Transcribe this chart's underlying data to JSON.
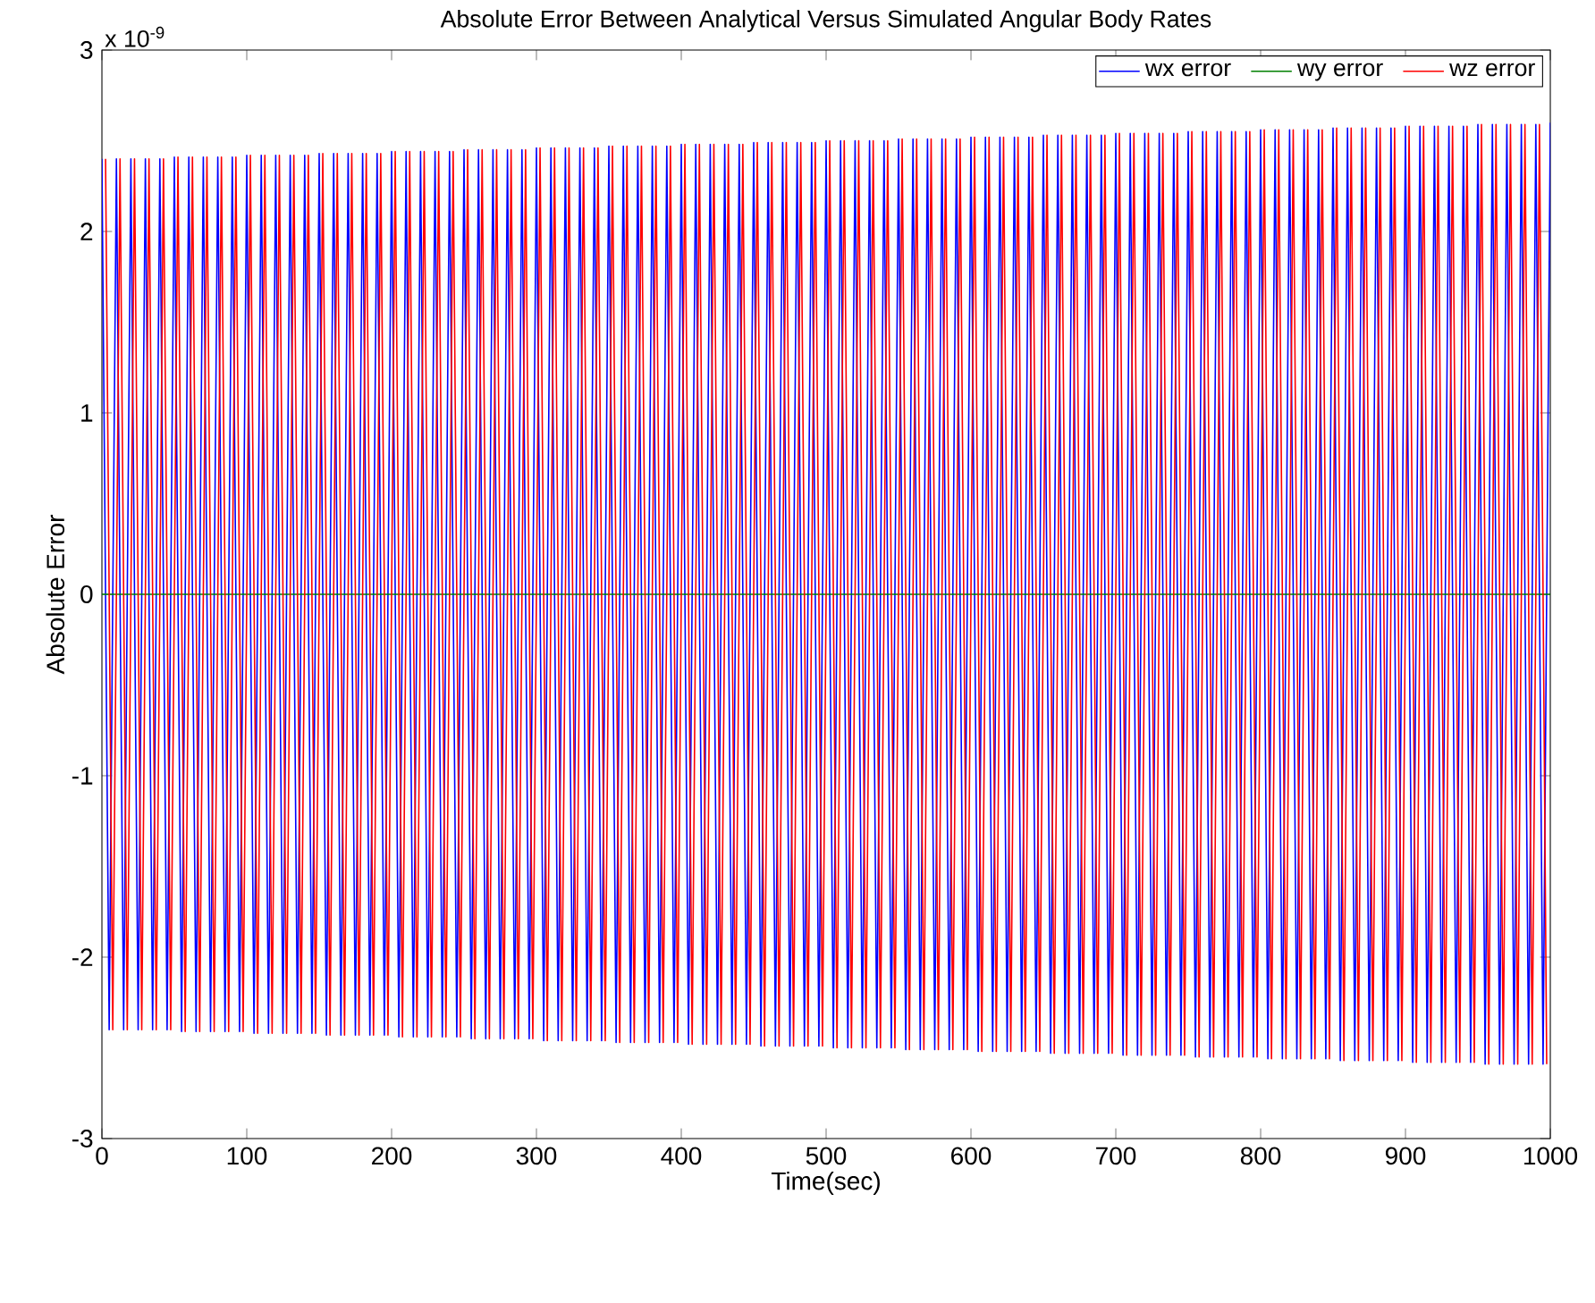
{
  "chart_data": {
    "type": "line",
    "title": "Absolute Error Between Analytical Versus Simulated Angular Body Rates",
    "xlabel": "Time(sec)",
    "ylabel": "Absolute Error",
    "annotations": [
      "x 10$^{-9}$"
    ],
    "xlim": [
      0,
      1000
    ],
    "ylim": [
      -3,
      3
    ],
    "xticks": [
      0,
      100,
      200,
      300,
      400,
      500,
      600,
      700,
      800,
      900,
      1000
    ],
    "yticks": [
      -3,
      -2,
      -1,
      0,
      1,
      2,
      3
    ],
    "grid": false,
    "legend": "top right",
    "line_style": "solid",
    "series": [
      {
        "name": "wx error",
        "color": "#0000ff",
        "x": [
          0,
          5,
          10,
          15,
          20,
          25,
          30,
          35,
          40,
          45,
          50,
          55,
          60,
          65,
          70,
          75,
          80,
          85,
          90,
          95,
          100,
          105,
          110,
          115,
          120,
          125,
          130,
          135,
          140,
          145,
          150,
          155,
          160,
          165,
          170,
          175,
          180,
          185,
          190,
          195,
          200,
          205,
          210,
          215,
          220,
          225,
          230,
          235,
          240,
          245,
          250,
          255,
          260,
          265,
          270,
          275,
          280,
          285,
          290,
          295,
          300,
          305,
          310,
          315,
          320,
          325,
          330,
          335,
          340,
          345,
          350,
          355,
          360,
          365,
          370,
          375,
          380,
          385,
          390,
          395,
          400,
          405,
          410,
          415,
          420,
          425,
          430,
          435,
          440,
          445,
          450,
          455,
          460,
          465,
          470,
          475,
          480,
          485,
          490,
          495,
          500,
          505,
          510,
          515,
          520,
          525,
          530,
          535,
          540,
          545,
          550,
          555,
          560,
          565,
          570,
          575,
          580,
          585,
          590,
          595,
          600,
          605,
          610,
          615,
          620,
          625,
          630,
          635,
          640,
          645,
          650,
          655,
          660,
          665,
          670,
          675,
          680,
          685,
          690,
          695,
          700,
          705,
          710,
          715,
          720,
          725,
          730,
          735,
          740,
          745,
          750,
          755,
          760,
          765,
          770,
          775,
          780,
          785,
          790,
          795,
          800,
          805,
          810,
          815,
          820,
          825,
          830,
          835,
          840,
          845,
          850,
          855,
          860,
          865,
          870,
          875,
          880,
          885,
          890,
          895,
          900,
          905,
          910,
          915,
          920,
          925,
          930,
          935,
          940,
          945,
          950,
          955,
          960,
          965,
          970,
          975,
          980,
          985,
          990,
          995,
          1000
        ],
        "values": [
          2.4,
          -2.4,
          2.4,
          -2.4,
          2.4,
          -2.4,
          2.4,
          -2.4,
          2.4,
          -2.4,
          2.41,
          -2.41,
          2.41,
          -2.41,
          2.41,
          -2.41,
          2.41,
          -2.41,
          2.41,
          -2.41,
          2.42,
          -2.42,
          2.42,
          -2.42,
          2.42,
          -2.42,
          2.42,
          -2.42,
          2.42,
          -2.42,
          2.43,
          -2.43,
          2.43,
          -2.43,
          2.43,
          -2.43,
          2.43,
          -2.43,
          2.43,
          -2.43,
          2.44,
          -2.44,
          2.44,
          -2.44,
          2.44,
          -2.44,
          2.44,
          -2.44,
          2.44,
          -2.44,
          2.45,
          -2.45,
          2.45,
          -2.45,
          2.45,
          -2.45,
          2.45,
          -2.45,
          2.45,
          -2.45,
          2.46,
          -2.46,
          2.46,
          -2.46,
          2.46,
          -2.46,
          2.46,
          -2.46,
          2.46,
          -2.46,
          2.47,
          -2.47,
          2.47,
          -2.47,
          2.47,
          -2.47,
          2.47,
          -2.47,
          2.47,
          -2.47,
          2.48,
          -2.48,
          2.48,
          -2.48,
          2.48,
          -2.48,
          2.48,
          -2.48,
          2.48,
          -2.48,
          2.49,
          -2.49,
          2.49,
          -2.49,
          2.49,
          -2.49,
          2.49,
          -2.49,
          2.49,
          -2.49,
          2.5,
          -2.5,
          2.5,
          -2.5,
          2.5,
          -2.5,
          2.5,
          -2.5,
          2.5,
          -2.5,
          2.51,
          -2.51,
          2.51,
          -2.51,
          2.51,
          -2.51,
          2.51,
          -2.51,
          2.51,
          -2.51,
          2.52,
          -2.52,
          2.52,
          -2.52,
          2.52,
          -2.52,
          2.52,
          -2.52,
          2.52,
          -2.52,
          2.53,
          -2.53,
          2.53,
          -2.53,
          2.53,
          -2.53,
          2.53,
          -2.53,
          2.53,
          -2.53,
          2.54,
          -2.54,
          2.54,
          -2.54,
          2.54,
          -2.54,
          2.54,
          -2.54,
          2.54,
          -2.54,
          2.55,
          -2.55,
          2.55,
          -2.55,
          2.55,
          -2.55,
          2.55,
          -2.55,
          2.55,
          -2.55,
          2.56,
          -2.56,
          2.56,
          -2.56,
          2.56,
          -2.56,
          2.56,
          -2.56,
          2.56,
          -2.56,
          2.57,
          -2.57,
          2.57,
          -2.57,
          2.57,
          -2.57,
          2.57,
          -2.57,
          2.57,
          -2.57,
          2.58,
          -2.58,
          2.58,
          -2.58,
          2.58,
          -2.58,
          2.58,
          -2.58,
          2.58,
          -2.58,
          2.59,
          -2.59,
          2.59,
          -2.59,
          2.59,
          -2.59,
          2.59,
          -2.59,
          2.59,
          -2.59,
          2.6
        ]
      },
      {
        "name": "wy error",
        "color": "#008000",
        "x": [
          0,
          1000
        ],
        "values": [
          0,
          0
        ]
      },
      {
        "name": "wz error",
        "color": "#ff0000",
        "x": [
          2.5,
          7.5,
          12.5,
          17.5,
          22.5,
          27.5,
          32.5,
          37.5,
          42.5,
          47.5,
          52.5,
          57.5,
          62.5,
          67.5,
          72.5,
          77.5,
          82.5,
          87.5,
          92.5,
          97.5,
          102.5,
          107.5,
          112.5,
          117.5,
          122.5,
          127.5,
          132.5,
          137.5,
          142.5,
          147.5,
          152.5,
          157.5,
          162.5,
          167.5,
          172.5,
          177.5,
          182.5,
          187.5,
          192.5,
          197.5,
          202.5,
          207.5,
          212.5,
          217.5,
          222.5,
          227.5,
          232.5,
          237.5,
          242.5,
          247.5,
          252.5,
          257.5,
          262.5,
          267.5,
          272.5,
          277.5,
          282.5,
          287.5,
          292.5,
          297.5,
          302.5,
          307.5,
          312.5,
          317.5,
          322.5,
          327.5,
          332.5,
          337.5,
          342.5,
          347.5,
          352.5,
          357.5,
          362.5,
          367.5,
          372.5,
          377.5,
          382.5,
          387.5,
          392.5,
          397.5,
          402.5,
          407.5,
          412.5,
          417.5,
          422.5,
          427.5,
          432.5,
          437.5,
          442.5,
          447.5,
          452.5,
          457.5,
          462.5,
          467.5,
          472.5,
          477.5,
          482.5,
          487.5,
          492.5,
          497.5,
          502.5,
          507.5,
          512.5,
          517.5,
          522.5,
          527.5,
          532.5,
          537.5,
          542.5,
          547.5,
          552.5,
          557.5,
          562.5,
          567.5,
          572.5,
          577.5,
          582.5,
          587.5,
          592.5,
          597.5,
          602.5,
          607.5,
          612.5,
          617.5,
          622.5,
          627.5,
          632.5,
          637.5,
          642.5,
          647.5,
          652.5,
          657.5,
          662.5,
          667.5,
          672.5,
          677.5,
          682.5,
          687.5,
          692.5,
          697.5,
          702.5,
          707.5,
          712.5,
          717.5,
          722.5,
          727.5,
          732.5,
          737.5,
          742.5,
          747.5,
          752.5,
          757.5,
          762.5,
          767.5,
          772.5,
          777.5,
          782.5,
          787.5,
          792.5,
          797.5,
          802.5,
          807.5,
          812.5,
          817.5,
          822.5,
          827.5,
          832.5,
          837.5,
          842.5,
          847.5,
          852.5,
          857.5,
          862.5,
          867.5,
          872.5,
          877.5,
          882.5,
          887.5,
          892.5,
          897.5,
          902.5,
          907.5,
          912.5,
          917.5,
          922.5,
          927.5,
          932.5,
          937.5,
          942.5,
          947.5,
          952.5,
          957.5,
          962.5,
          967.5,
          972.5,
          977.5,
          982.5,
          987.5,
          992.5,
          997.5
        ],
        "values": [
          2.4,
          -2.4,
          2.4,
          -2.4,
          2.4,
          -2.4,
          2.4,
          -2.4,
          2.4,
          -2.4,
          2.41,
          -2.41,
          2.41,
          -2.41,
          2.41,
          -2.41,
          2.41,
          -2.41,
          2.41,
          -2.41,
          2.42,
          -2.42,
          2.42,
          -2.42,
          2.42,
          -2.42,
          2.42,
          -2.42,
          2.42,
          -2.42,
          2.43,
          -2.43,
          2.43,
          -2.43,
          2.43,
          -2.43,
          2.43,
          -2.43,
          2.43,
          -2.43,
          2.44,
          -2.44,
          2.44,
          -2.44,
          2.44,
          -2.44,
          2.44,
          -2.44,
          2.44,
          -2.44,
          2.45,
          -2.45,
          2.45,
          -2.45,
          2.45,
          -2.45,
          2.45,
          -2.45,
          2.45,
          -2.45,
          2.46,
          -2.46,
          2.46,
          -2.46,
          2.46,
          -2.46,
          2.46,
          -2.46,
          2.46,
          -2.46,
          2.47,
          -2.47,
          2.47,
          -2.47,
          2.47,
          -2.47,
          2.47,
          -2.47,
          2.47,
          -2.47,
          2.48,
          -2.48,
          2.48,
          -2.48,
          2.48,
          -2.48,
          2.48,
          -2.48,
          2.48,
          -2.48,
          2.49,
          -2.49,
          2.49,
          -2.49,
          2.49,
          -2.49,
          2.49,
          -2.49,
          2.49,
          -2.49,
          2.5,
          -2.5,
          2.5,
          -2.5,
          2.5,
          -2.5,
          2.5,
          -2.5,
          2.5,
          -2.5,
          2.51,
          -2.51,
          2.51,
          -2.51,
          2.51,
          -2.51,
          2.51,
          -2.51,
          2.51,
          -2.51,
          2.52,
          -2.52,
          2.52,
          -2.52,
          2.52,
          -2.52,
          2.52,
          -2.52,
          2.52,
          -2.52,
          2.53,
          -2.53,
          2.53,
          -2.53,
          2.53,
          -2.53,
          2.53,
          -2.53,
          2.53,
          -2.53,
          2.54,
          -2.54,
          2.54,
          -2.54,
          2.54,
          -2.54,
          2.54,
          -2.54,
          2.54,
          -2.54,
          2.55,
          -2.55,
          2.55,
          -2.55,
          2.55,
          -2.55,
          2.55,
          -2.55,
          2.55,
          -2.55,
          2.56,
          -2.56,
          2.56,
          -2.56,
          2.56,
          -2.56,
          2.56,
          -2.56,
          2.56,
          -2.56,
          2.57,
          -2.57,
          2.57,
          -2.57,
          2.57,
          -2.57,
          2.57,
          -2.57,
          2.57,
          -2.57,
          2.58,
          -2.58,
          2.58,
          -2.58,
          2.58,
          -2.58,
          2.58,
          -2.58,
          2.58,
          -2.58,
          2.59,
          -2.59,
          2.59,
          -2.59,
          2.59,
          -2.59,
          2.59,
          -2.59,
          2.59,
          -2.59
        ]
      }
    ]
  }
}
